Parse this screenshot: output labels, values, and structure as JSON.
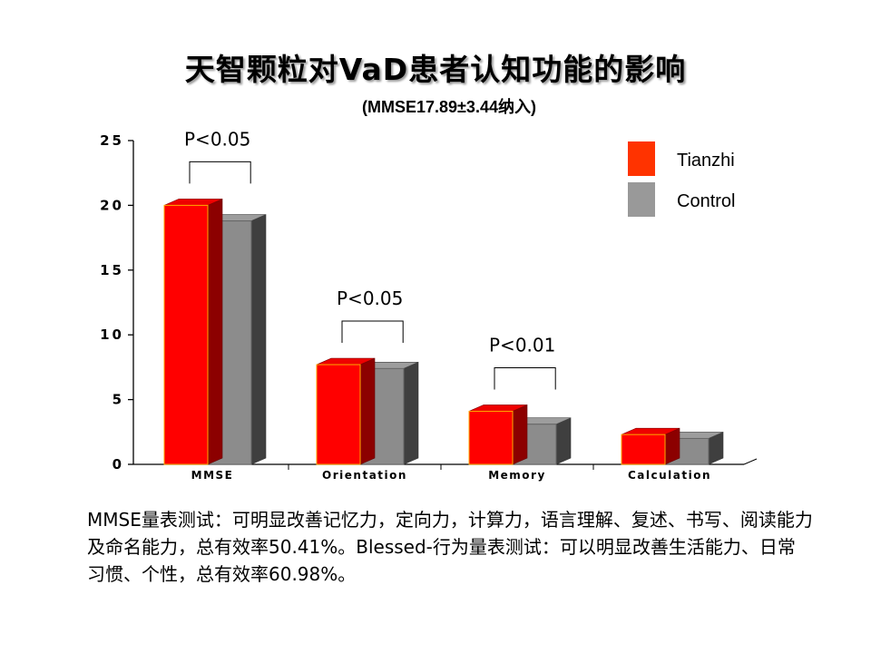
{
  "slide": {
    "title": "天智颗粒对VaD患者认知功能的影响",
    "subtitle": "(MMSE17.89±3.44纳入)",
    "description": "MMSE量表测试：可明显改善记忆力，定向力，计算力，语言理解、复述、书写、阅读能力及命名能力，总有效率50.41%。Blessed-行为量表测试：可以明显改善生活能力、日常习惯、个性，总有效率60.98%。"
  },
  "chart_data": {
    "type": "bar",
    "categories": [
      "MMSE",
      "Orientation",
      "Memory",
      "Calculation"
    ],
    "series": [
      {
        "name": "Tianzhi",
        "values": [
          20,
          7.7,
          4.1,
          2.3
        ],
        "color": "#ff0000"
      },
      {
        "name": "Control",
        "values": [
          18.8,
          7.4,
          3.1,
          2.0
        ],
        "color": "#8c8c8c"
      }
    ],
    "ylim": [
      0,
      25
    ],
    "yticks": [
      0,
      5,
      10,
      15,
      20,
      25
    ],
    "legend_position": "top-right",
    "grid": false,
    "annotations": [
      {
        "category": "MMSE",
        "text": "P<0.05"
      },
      {
        "category": "Orientation",
        "text": "P<0.05"
      },
      {
        "category": "Memory",
        "text": "P<0.01"
      }
    ]
  }
}
